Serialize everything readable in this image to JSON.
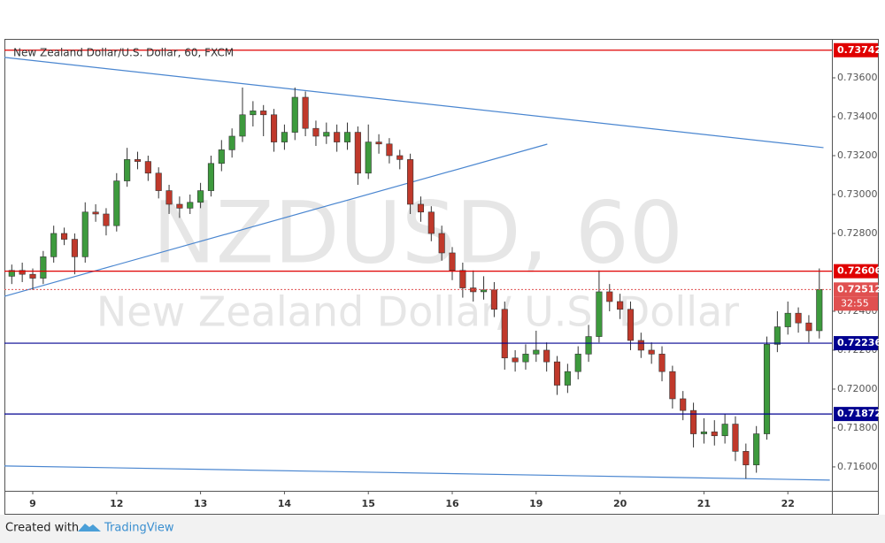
{
  "chart_data": {
    "type": "candlestick",
    "title": "New Zealand Dollar/U.S. Dollar, 60, FXCM",
    "watermark": "NZDUSD, 60",
    "watermark_subtitle": "New Zealand Dollar/ U.S. Dollar",
    "footer": {
      "prefix": "Created with",
      "brand": "TradingView"
    },
    "colors": {
      "up": "#3d9a3d",
      "down": "#c0392b",
      "wick": "#333333"
    },
    "xlim": [
      -0.7,
      78.2
    ],
    "ylim": [
      0.71477,
      0.738
    ],
    "xticks": [
      {
        "value": 2,
        "label": "9"
      },
      {
        "value": 10,
        "label": "12"
      },
      {
        "value": 18,
        "label": "13"
      },
      {
        "value": 26,
        "label": "14"
      },
      {
        "value": 34,
        "label": "15"
      },
      {
        "value": 42,
        "label": "16"
      },
      {
        "value": 50,
        "label": "19"
      },
      {
        "value": 58,
        "label": "20"
      },
      {
        "value": 66,
        "label": "21"
      },
      {
        "value": 74,
        "label": "22"
      }
    ],
    "yticks": [
      {
        "value": 0.736,
        "label": "0.73600"
      },
      {
        "value": 0.734,
        "label": "0.73400"
      },
      {
        "value": 0.732,
        "label": "0.73200"
      },
      {
        "value": 0.73,
        "label": "0.73000"
      },
      {
        "value": 0.728,
        "label": "0.72800"
      },
      {
        "value": 0.724,
        "label": "0.72400"
      },
      {
        "value": 0.722,
        "label": "0.72200"
      },
      {
        "value": 0.72,
        "label": "0.72000"
      },
      {
        "value": 0.718,
        "label": "0.71800"
      },
      {
        "value": 0.716,
        "label": "0.71600"
      }
    ],
    "candles": {
      "open": [
        0.7258,
        0.7261,
        0.7259,
        0.7257,
        0.7268,
        0.728,
        0.7277,
        0.7268,
        0.7291,
        0.729,
        0.7284,
        0.7307,
        0.7318,
        0.7317,
        0.7311,
        0.7302,
        0.7295,
        0.7293,
        0.7296,
        0.7302,
        0.7316,
        0.7323,
        0.733,
        0.7341,
        0.7343,
        0.7341,
        0.7327,
        0.7332,
        0.735,
        0.7334,
        0.733,
        0.7332,
        0.7327,
        0.7332,
        0.7311,
        0.7327,
        0.7326,
        0.732,
        0.7318,
        0.7295,
        0.7291,
        0.728,
        0.727,
        0.7261,
        0.7252,
        0.725,
        0.7251,
        0.7241,
        0.7216,
        0.7214,
        0.7218,
        0.722,
        0.7214,
        0.7202,
        0.7209,
        0.7218,
        0.7227,
        0.725,
        0.7245,
        0.7241,
        0.7225,
        0.722,
        0.7218,
        0.7209,
        0.7195,
        0.7189,
        0.7177,
        0.7178,
        0.7176,
        0.7182,
        0.7168,
        0.7161,
        0.7177,
        0.7223,
        0.7232,
        0.7239,
        0.7234,
        0.723
      ],
      "high": [
        0.7264,
        0.7265,
        0.7262,
        0.7271,
        0.7284,
        0.7283,
        0.728,
        0.7296,
        0.7295,
        0.7293,
        0.7311,
        0.7324,
        0.7322,
        0.732,
        0.7314,
        0.7305,
        0.7299,
        0.73,
        0.7306,
        0.732,
        0.7328,
        0.7334,
        0.7355,
        0.7348,
        0.7346,
        0.7344,
        0.7336,
        0.7355,
        0.7353,
        0.7338,
        0.7337,
        0.7336,
        0.7337,
        0.7335,
        0.7336,
        0.7331,
        0.7329,
        0.7323,
        0.7321,
        0.7299,
        0.7294,
        0.7284,
        0.7273,
        0.7265,
        0.7261,
        0.7258,
        0.7255,
        0.7245,
        0.722,
        0.7223,
        0.723,
        0.7224,
        0.7217,
        0.7213,
        0.7222,
        0.7233,
        0.7261,
        0.7254,
        0.7249,
        0.7245,
        0.7229,
        0.7224,
        0.7222,
        0.7212,
        0.7199,
        0.7193,
        0.7185,
        0.7184,
        0.7187,
        0.7186,
        0.7172,
        0.7181,
        0.7227,
        0.724,
        0.7245,
        0.7242,
        0.7238,
        0.7262
      ],
      "low": [
        0.7254,
        0.7255,
        0.7251,
        0.7254,
        0.7265,
        0.7274,
        0.7259,
        0.7265,
        0.7286,
        0.7279,
        0.7281,
        0.7304,
        0.7313,
        0.7307,
        0.7298,
        0.729,
        0.7288,
        0.729,
        0.7293,
        0.7299,
        0.7312,
        0.7319,
        0.7327,
        0.7335,
        0.733,
        0.7322,
        0.7323,
        0.7328,
        0.733,
        0.7325,
        0.7326,
        0.7322,
        0.7323,
        0.7305,
        0.7308,
        0.7321,
        0.7316,
        0.7313,
        0.729,
        0.7286,
        0.7276,
        0.7266,
        0.7256,
        0.7247,
        0.7245,
        0.7246,
        0.7237,
        0.721,
        0.7209,
        0.721,
        0.7214,
        0.7209,
        0.7197,
        0.7198,
        0.7205,
        0.7214,
        0.7224,
        0.724,
        0.7236,
        0.722,
        0.7216,
        0.7213,
        0.7204,
        0.719,
        0.7184,
        0.717,
        0.7172,
        0.7171,
        0.7172,
        0.7163,
        0.7154,
        0.7157,
        0.7174,
        0.7219,
        0.7228,
        0.7229,
        0.7224,
        0.7226
      ],
      "close": [
        0.7261,
        0.7259,
        0.7257,
        0.7268,
        0.728,
        0.7277,
        0.7268,
        0.7291,
        0.729,
        0.7284,
        0.7307,
        0.7318,
        0.7317,
        0.7311,
        0.7302,
        0.7295,
        0.7293,
        0.7296,
        0.7302,
        0.7316,
        0.7323,
        0.733,
        0.7341,
        0.7343,
        0.7341,
        0.7327,
        0.7332,
        0.735,
        0.7334,
        0.733,
        0.7332,
        0.7327,
        0.7332,
        0.7311,
        0.7327,
        0.7326,
        0.732,
        0.7318,
        0.7295,
        0.7291,
        0.728,
        0.727,
        0.7261,
        0.7252,
        0.725,
        0.7251,
        0.7241,
        0.7216,
        0.7214,
        0.7218,
        0.722,
        0.7214,
        0.7202,
        0.7209,
        0.7218,
        0.7227,
        0.725,
        0.7245,
        0.7241,
        0.7225,
        0.722,
        0.7218,
        0.7209,
        0.7195,
        0.7189,
        0.7177,
        0.7178,
        0.7176,
        0.7182,
        0.7168,
        0.7161,
        0.7177,
        0.7223,
        0.7232,
        0.7239,
        0.7234,
        0.723,
        0.72512
      ]
    },
    "levels": [
      {
        "value": 0.73742,
        "color": "#e00000"
      },
      {
        "value": 0.72606,
        "color": "#e00000"
      },
      {
        "value": 0.72236,
        "color": "#000090"
      },
      {
        "value": 0.71872,
        "color": "#000090"
      }
    ],
    "last_price": {
      "value": 0.72512,
      "color": "#e05050",
      "countdown": "32:55"
    },
    "trendlines": [
      {
        "x": [
          -0.7,
          77.4
        ],
        "y": [
          0.73705,
          0.73241
        ],
        "color": "#4a86d0"
      },
      {
        "x": [
          -0.7,
          51.06
        ],
        "y": [
          0.72477,
          0.73259
        ],
        "color": "#4a86d0"
      },
      {
        "x": [
          -0.7,
          78
        ],
        "y": [
          0.71605,
          0.71532
        ],
        "color": "#4a86d0"
      }
    ]
  }
}
